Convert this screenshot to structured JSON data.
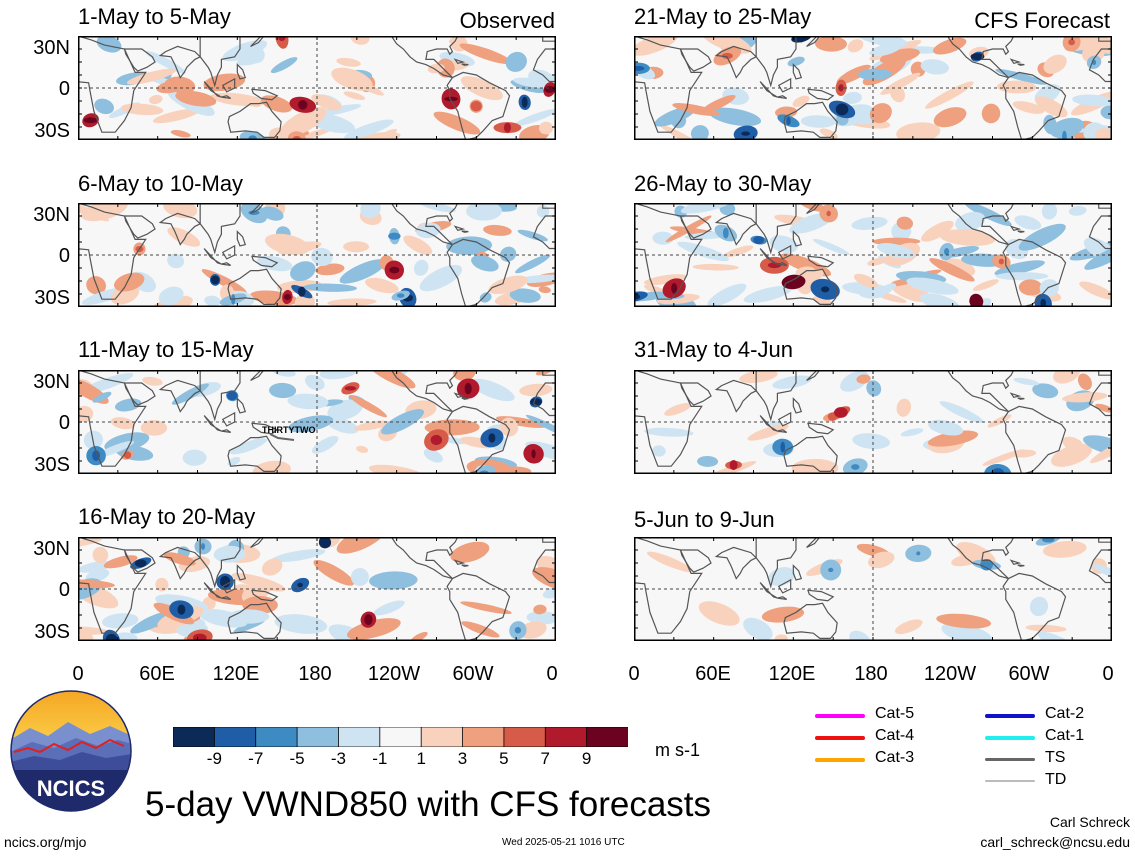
{
  "observed_label": "Observed",
  "forecast_label": "CFS Forecast",
  "lat_labels": [
    "30N",
    "0",
    "30S"
  ],
  "lon_labels": [
    "0",
    "60E",
    "120E",
    "180",
    "120W",
    "60W",
    "0"
  ],
  "panels_left": [
    {
      "title": "1-May to 5-May"
    },
    {
      "title": "6-May to 10-May"
    },
    {
      "title": "11-May to 15-May",
      "storm": "THIRTYTWO"
    },
    {
      "title": "16-May to 20-May"
    }
  ],
  "panels_right": [
    {
      "title": "21-May to 25-May"
    },
    {
      "title": "26-May to 30-May"
    },
    {
      "title": "31-May to 4-Jun"
    },
    {
      "title": "5-Jun to 9-Jun"
    }
  ],
  "colorbar": {
    "labels": [
      "-9",
      "-7",
      "-5",
      "-3",
      "-1",
      "1",
      "3",
      "5",
      "7",
      "9"
    ],
    "colors": [
      "#0b2a57",
      "#1f5ea6",
      "#3e8bc4",
      "#8fbfde",
      "#cfe4f2",
      "#f7f7f7",
      "#f9d2bd",
      "#eea07f",
      "#d65b48",
      "#b01a2c",
      "#6b0320"
    ],
    "units": "m s-1"
  },
  "legend": [
    {
      "label": "Cat-5",
      "color": "#ff00ff"
    },
    {
      "label": "Cat-4",
      "color": "#ee1111"
    },
    {
      "label": "Cat-3",
      "color": "#ffa500"
    },
    {
      "label": "Cat-2",
      "color": "#1111cc"
    },
    {
      "label": "Cat-1",
      "color": "#22eeee"
    },
    {
      "label": "TS",
      "color": "#666666"
    },
    {
      "label": "TD",
      "color": "#bbbbbb"
    }
  ],
  "logo_text": "NCICS",
  "main_title": "5-day VWND850 with CFS forecasts",
  "footer": {
    "url": "ncics.org/mjo",
    "timestamp": "Wed 2025-05-21 1016 UTC",
    "author": "Carl Schreck",
    "email": "carl_schreck@ncsu.edu"
  }
}
